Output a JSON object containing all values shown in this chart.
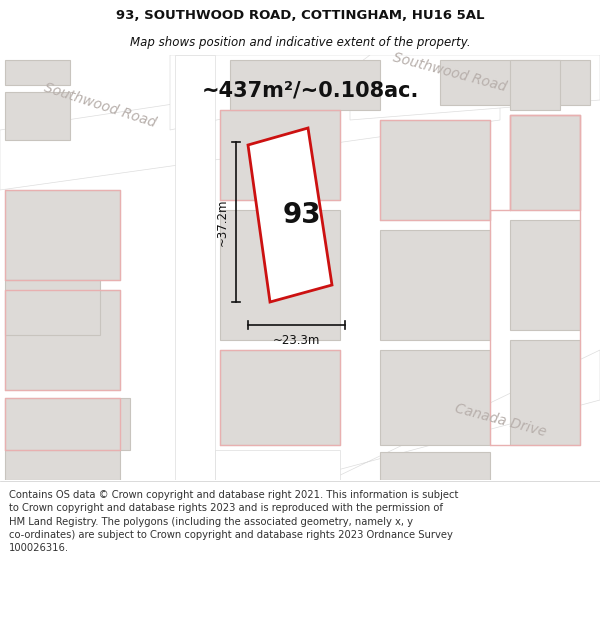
{
  "title_line1": "93, SOUTHWOOD ROAD, COTTINGHAM, HU16 5AL",
  "title_line2": "Map shows position and indicative extent of the property.",
  "area_text": "~437m²/~0.108ac.",
  "label_93": "93",
  "dim_width": "~23.3m",
  "dim_height": "~37.2m",
  "road_label_sw_left": "Southwood Road",
  "road_label_sw_right": "Southwood Road",
  "road_label_canada": "Canada Drive",
  "footer_text": "Contains OS data © Crown copyright and database right 2021. This information is subject\nto Crown copyright and database rights 2023 and is reproduced with the permission of\nHM Land Registry. The polygons (including the associated geometry, namely x, y\nco-ordinates) are subject to Crown copyright and database rights 2023 Ordnance Survey\n100026316.",
  "bg_color": "#f2f0ee",
  "road_fill": "#ffffff",
  "building_fill": "#dddad7",
  "building_edge": "#c8c4be",
  "red_prop_color": "#cc1111",
  "red_plot_color": "#e8b0b0",
  "road_label_color": "#b8b0ac",
  "dim_color": "#111111",
  "area_color": "#111111",
  "title_color": "#111111",
  "footer_color": "#333333",
  "title_fontsize": 9.5,
  "subtitle_fontsize": 8.5,
  "area_fontsize": 15,
  "label93_fontsize": 20,
  "dim_fontsize": 8.5,
  "road_fontsize": 10,
  "footer_fontsize": 7.2
}
